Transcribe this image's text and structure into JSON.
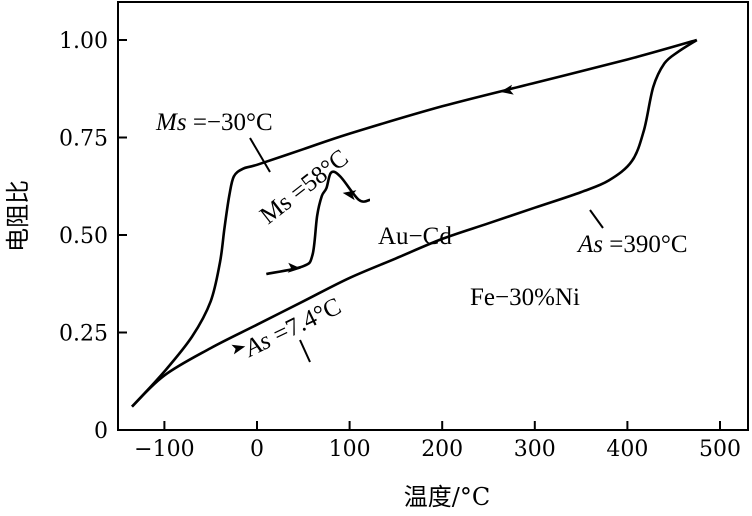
{
  "chart_data": {
    "type": "line",
    "title": "",
    "xlabel": "温度/°C",
    "ylabel": "电阻比",
    "xlim": [
      -140,
      520
    ],
    "ylim": [
      0,
      1.1
    ],
    "x_ticks": [
      -100,
      0,
      100,
      200,
      300,
      400,
      500
    ],
    "x_tick_labels": [
      "−100",
      "0",
      "100",
      "200",
      "300",
      "400",
      "500"
    ],
    "y_ticks": [
      0,
      0.25,
      0.5,
      0.75,
      1.0
    ],
    "y_tick_labels": [
      "0",
      "0.25",
      "0.50",
      "0.75",
      "1.00"
    ],
    "grid": false,
    "legend": "none",
    "line_color": "#000000",
    "series": [
      {
        "name": "Fe−30%Ni",
        "x": [
          -135,
          -100,
          -50,
          0,
          50,
          100,
          150,
          200,
          250,
          300,
          350,
          380,
          405,
          418,
          428,
          440,
          455,
          475
        ],
        "y": [
          0.06,
          0.14,
          0.21,
          0.27,
          0.33,
          0.39,
          0.44,
          0.49,
          0.53,
          0.57,
          0.61,
          0.64,
          0.69,
          0.77,
          0.88,
          0.94,
          0.97,
          1.0
        ]
      },
      {
        "name": "Fe−30%Ni",
        "x": [
          475,
          400,
          300,
          200,
          100,
          50,
          0,
          -15,
          -25,
          -30,
          -35,
          -40,
          -50,
          -70,
          -100,
          -135
        ],
        "y": [
          1.0,
          0.95,
          0.89,
          0.83,
          0.76,
          0.72,
          0.68,
          0.67,
          0.65,
          0.6,
          0.52,
          0.43,
          0.33,
          0.24,
          0.15,
          0.06
        ]
      },
      {
        "name": "Au−Cd",
        "x": [
          10,
          50,
          60,
          65,
          70,
          75,
          80,
          90,
          110,
          122
        ],
        "y": [
          0.4,
          0.42,
          0.45,
          0.55,
          0.6,
          0.62,
          0.66,
          0.65,
          0.59,
          0.59
        ]
      }
    ],
    "annotations": [
      {
        "text_parts": [
          "Ms",
          " =−30°C"
        ],
        "italic_first": true,
        "x": -30,
        "y": 0.61
      },
      {
        "text_parts": [
          "Ms",
          " =58°C"
        ],
        "italic_first": false,
        "x": 58,
        "y": 0.6
      },
      {
        "text_parts": [
          "As",
          " =7.4°C"
        ],
        "italic_first": true,
        "x": 7.4,
        "y": 0.26
      },
      {
        "text_parts": [
          "As",
          " =390°C"
        ],
        "italic_first": true,
        "x": 390,
        "y": 0.62
      },
      {
        "text_parts": [
          "Au−Cd",
          ""
        ],
        "italic_first": false,
        "x": 0,
        "y": 0
      },
      {
        "text_parts": [
          "Fe−30%Ni",
          ""
        ],
        "italic_first": false,
        "x": 0,
        "y": 0
      }
    ]
  }
}
